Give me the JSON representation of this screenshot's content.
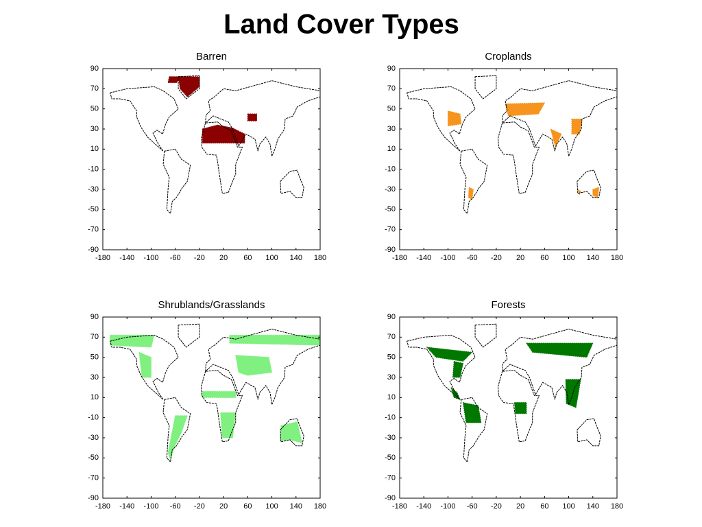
{
  "title": "Land Cover Types",
  "chart_data": [
    {
      "type": "map",
      "title": "Barren",
      "color": "#8b0000",
      "xlim": [
        -180,
        180
      ],
      "ylim": [
        -90,
        90
      ],
      "xticks": [
        -180,
        -140,
        -100,
        -60,
        -20,
        20,
        60,
        100,
        140,
        180
      ],
      "yticks": [
        90,
        70,
        50,
        30,
        10,
        -10,
        -30,
        -50,
        -70,
        -90
      ]
    },
    {
      "type": "map",
      "title": "Croplands",
      "color": "#f7941d",
      "xlim": [
        -180,
        180
      ],
      "ylim": [
        -90,
        90
      ],
      "xticks": [
        -180,
        -140,
        -100,
        -60,
        -20,
        20,
        60,
        100,
        140,
        180
      ],
      "yticks": [
        90,
        70,
        50,
        30,
        10,
        -10,
        -30,
        -50,
        -70,
        -90
      ]
    },
    {
      "type": "map",
      "title": "Shrublands/Grasslands",
      "color": "#80f080",
      "xlim": [
        -180,
        180
      ],
      "ylim": [
        -90,
        90
      ],
      "xticks": [
        -180,
        -140,
        -100,
        -60,
        -20,
        20,
        60,
        100,
        140,
        180
      ],
      "yticks": [
        90,
        70,
        50,
        30,
        10,
        -10,
        -30,
        -50,
        -70,
        -90
      ]
    },
    {
      "type": "map",
      "title": "Forests",
      "color": "#007800",
      "xlim": [
        -180,
        180
      ],
      "ylim": [
        -90,
        90
      ],
      "xticks": [
        -180,
        -140,
        -100,
        -60,
        -20,
        20,
        60,
        100,
        140,
        180
      ],
      "yticks": [
        90,
        70,
        50,
        30,
        10,
        -10,
        -30,
        -50,
        -70,
        -90
      ]
    }
  ]
}
